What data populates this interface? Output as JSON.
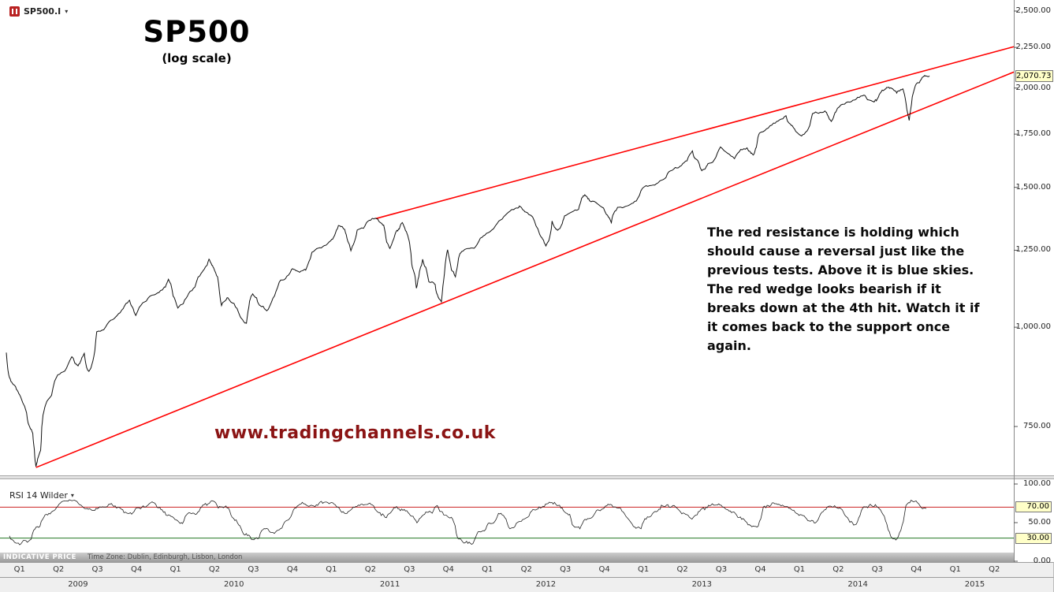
{
  "window": {
    "symbol": "SP500.I"
  },
  "icons": {
    "chevron_down": "▾"
  },
  "annotation": "The red resistance is holding which should cause a reversal just like the previous tests. Above it is blue skies. The red wedge looks bearish if it breaks down at the 4th hit. Watch it if it comes back to the support once again.",
  "watermark": "www.tradingchannels.co.uk",
  "status_bar": {
    "left": "INDICATIVE PRICE",
    "timezone": "Time Zone: Dublin, Edinburgh, Lisbon, London"
  },
  "colors": {
    "trendline": "#ff0000",
    "price_line": "#111111",
    "rsi_line": "#222222",
    "rsi_upper": "#cc2222",
    "rsi_lower": "#227722",
    "watermark": "#8b1414",
    "badge_bg": "#ffffc8"
  },
  "chart_data": [
    {
      "type": "line",
      "title": "SP500",
      "subtitle": "(log scale)",
      "y_scale": "log",
      "ylim": [
        650,
        2550
      ],
      "x_range": [
        2009.0,
        2015.5
      ],
      "y_ticks": [
        2500,
        2250,
        2000,
        1750,
        1500,
        1250,
        1000,
        750
      ],
      "last_price": 2070.73,
      "last_price_label": "2,070.73",
      "legend_position": "none",
      "grid": false,
      "series": [
        {
          "name": "SP500.I",
          "points": [
            [
              2009.0,
              928
            ],
            [
              2009.04,
              850
            ],
            [
              2009.08,
              826
            ],
            [
              2009.13,
              780
            ],
            [
              2009.17,
              735
            ],
            [
              2009.19,
              668
            ],
            [
              2009.22,
              700
            ],
            [
              2009.25,
              798
            ],
            [
              2009.33,
              872
            ],
            [
              2009.42,
              919
            ],
            [
              2009.46,
              893
            ],
            [
              2009.5,
              926
            ],
            [
              2009.53,
              880
            ],
            [
              2009.58,
              987
            ],
            [
              2009.67,
              1020
            ],
            [
              2009.75,
              1057
            ],
            [
              2009.79,
              1080
            ],
            [
              2009.83,
              1036
            ],
            [
              2009.92,
              1095
            ],
            [
              2010.0,
              1115
            ],
            [
              2010.04,
              1150
            ],
            [
              2010.1,
              1057
            ],
            [
              2010.17,
              1104
            ],
            [
              2010.25,
              1169
            ],
            [
              2010.3,
              1217
            ],
            [
              2010.33,
              1186
            ],
            [
              2010.38,
              1065
            ],
            [
              2010.42,
              1089
            ],
            [
              2010.5,
              1030
            ],
            [
              2010.54,
              1011
            ],
            [
              2010.58,
              1101
            ],
            [
              2010.63,
              1064
            ],
            [
              2010.67,
              1049
            ],
            [
              2010.75,
              1141
            ],
            [
              2010.83,
              1183
            ],
            [
              2010.88,
              1173
            ],
            [
              2010.92,
              1180
            ],
            [
              2011.0,
              1257
            ],
            [
              2011.08,
              1286
            ],
            [
              2011.13,
              1344
            ],
            [
              2011.17,
              1327
            ],
            [
              2011.21,
              1249
            ],
            [
              2011.25,
              1325
            ],
            [
              2011.33,
              1363
            ],
            [
              2011.37,
              1370
            ],
            [
              2011.42,
              1345
            ],
            [
              2011.46,
              1258
            ],
            [
              2011.5,
              1320
            ],
            [
              2011.54,
              1353
            ],
            [
              2011.58,
              1292
            ],
            [
              2011.6,
              1200
            ],
            [
              2011.63,
              1120
            ],
            [
              2011.65,
              1178
            ],
            [
              2011.67,
              1218
            ],
            [
              2011.71,
              1140
            ],
            [
              2011.75,
              1131
            ],
            [
              2011.79,
              1075
            ],
            [
              2011.83,
              1253
            ],
            [
              2011.88,
              1158
            ],
            [
              2011.92,
              1246
            ],
            [
              2012.0,
              1257
            ],
            [
              2012.08,
              1312
            ],
            [
              2012.17,
              1365
            ],
            [
              2012.25,
              1408
            ],
            [
              2012.29,
              1419
            ],
            [
              2012.33,
              1397
            ],
            [
              2012.42,
              1310
            ],
            [
              2012.46,
              1267
            ],
            [
              2012.5,
              1362
            ],
            [
              2012.54,
              1325
            ],
            [
              2012.58,
              1379
            ],
            [
              2012.67,
              1406
            ],
            [
              2012.71,
              1466
            ],
            [
              2012.75,
              1440
            ],
            [
              2012.83,
              1412
            ],
            [
              2012.88,
              1353
            ],
            [
              2012.92,
              1416
            ],
            [
              2013.0,
              1426
            ],
            [
              2013.08,
              1498
            ],
            [
              2013.17,
              1514
            ],
            [
              2013.25,
              1569
            ],
            [
              2013.33,
              1597
            ],
            [
              2013.4,
              1669
            ],
            [
              2013.42,
              1630
            ],
            [
              2013.46,
              1573
            ],
            [
              2013.5,
              1606
            ],
            [
              2013.58,
              1685
            ],
            [
              2013.67,
              1632
            ],
            [
              2013.75,
              1681
            ],
            [
              2013.79,
              1646
            ],
            [
              2013.83,
              1756
            ],
            [
              2013.92,
              1805
            ],
            [
              2014.0,
              1848
            ],
            [
              2014.04,
              1794
            ],
            [
              2014.1,
              1742
            ],
            [
              2014.17,
              1859
            ],
            [
              2014.25,
              1872
            ],
            [
              2014.29,
              1815
            ],
            [
              2014.33,
              1884
            ],
            [
              2014.42,
              1923
            ],
            [
              2014.5,
              1960
            ],
            [
              2014.56,
              1925
            ],
            [
              2014.58,
              1930
            ],
            [
              2014.63,
              1991
            ],
            [
              2014.67,
              2003
            ],
            [
              2014.71,
              1972
            ],
            [
              2014.75,
              1994
            ],
            [
              2014.79,
              1820
            ],
            [
              2014.83,
              2018
            ],
            [
              2014.88,
              2067
            ],
            [
              2014.92,
              2070.73
            ]
          ]
        }
      ],
      "trendlines": [
        {
          "name": "wedge-support-line",
          "from": [
            2009.19,
            666
          ],
          "to": [
            2015.5,
            2110
          ]
        },
        {
          "name": "wedge-resistance-line",
          "from": [
            2011.37,
            1370
          ],
          "to": [
            2015.5,
            2265
          ]
        }
      ]
    },
    {
      "type": "line",
      "title": "RSI 14 Wilder",
      "ylim": [
        0,
        100
      ],
      "y_ticks": [
        100,
        50,
        0
      ],
      "badge_values": [
        70,
        30
      ],
      "levels": [
        {
          "value": 70,
          "color": "#cc2222"
        },
        {
          "value": 30,
          "color": "#227722"
        }
      ],
      "x_range": [
        2009.02,
        2014.9
      ],
      "values": [
        32,
        22,
        27,
        45,
        62,
        75,
        80,
        72,
        66,
        71,
        74,
        68,
        61,
        70,
        76,
        66,
        58,
        48,
        63,
        72,
        78,
        70,
        55,
        34,
        28,
        42,
        36,
        50,
        68,
        74,
        71,
        76,
        72,
        62,
        70,
        74,
        66,
        57,
        70,
        66,
        50,
        63,
        72,
        58,
        30,
        24,
        38,
        50,
        61,
        44,
        52,
        58,
        70,
        77,
        72,
        60,
        42,
        56,
        66,
        73,
        68,
        50,
        43,
        58,
        72,
        70,
        62,
        55,
        68,
        75,
        70,
        64,
        55,
        45,
        70,
        76,
        72,
        66,
        58,
        50,
        66,
        72,
        60,
        48,
        70,
        73,
        52,
        28,
        72,
        78,
        68
      ]
    }
  ],
  "time_axis": {
    "quarters": [
      "Q1",
      "Q2",
      "Q3",
      "Q4",
      "Q1",
      "Q2",
      "Q3",
      "Q4",
      "Q1",
      "Q2",
      "Q3",
      "Q4",
      "Q1",
      "Q2",
      "Q3",
      "Q4",
      "Q1",
      "Q2",
      "Q3",
      "Q4",
      "Q1",
      "Q2",
      "Q3",
      "Q4",
      "Q1",
      "Q2"
    ],
    "years": [
      {
        "label": "2009",
        "span": 4
      },
      {
        "label": "2010",
        "span": 4
      },
      {
        "label": "2011",
        "span": 4
      },
      {
        "label": "2012",
        "span": 4
      },
      {
        "label": "2013",
        "span": 4
      },
      {
        "label": "2014",
        "span": 4
      },
      {
        "label": "2015",
        "span": 2
      }
    ]
  }
}
